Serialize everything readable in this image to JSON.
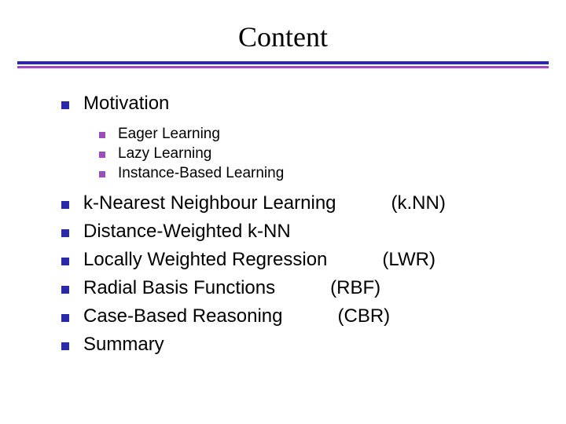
{
  "colors": {
    "text": "#000000",
    "background": "#ffffff",
    "divider_top": "#2a2aa8",
    "divider_bottom": "#9a4fb8",
    "bullet_main": "#2a2aa8",
    "bullet_sub": "#9a4fb8"
  },
  "typography": {
    "title_family": "Times New Roman, serif",
    "title_size_pt": 36,
    "body_family": "Arial, sans-serif",
    "body_size_pt": 24,
    "sub_size_pt": 19
  },
  "title": "Content",
  "items": {
    "0": {
      "label": "Motivation",
      "abbr": ""
    },
    "1": {
      "label": "k-Nearest Neighbour Learning",
      "abbr": "(k.NN)"
    },
    "2": {
      "label": "Distance-Weighted  k-NN",
      "abbr": ""
    },
    "3": {
      "label": "Locally Weighted Regression",
      "abbr": "(LWR)"
    },
    "4": {
      "label": "Radial Basis Functions",
      "abbr": "(RBF)"
    },
    "5": {
      "label": "Case-Based Reasoning",
      "abbr": "(CBR)"
    },
    "6": {
      "label": "Summary",
      "abbr": ""
    }
  },
  "subitems": {
    "0": "Eager Learning",
    "1": "Lazy Learning",
    "2": "Instance-Based Learning"
  }
}
